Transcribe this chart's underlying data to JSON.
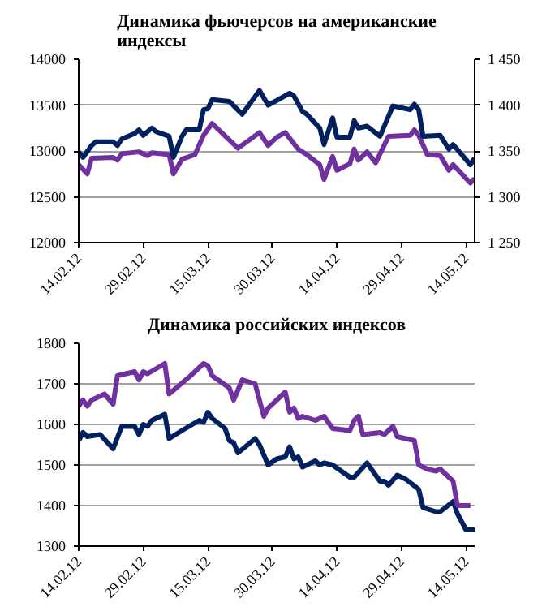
{
  "chart_data": [
    {
      "type": "line",
      "title": "Динамика фьючерсов на американские индексы",
      "grid": "y",
      "line_style": "solid",
      "marker": "none",
      "xlim": [
        "2012-02-14",
        "2012-05-16"
      ],
      "xticks": [
        {
          "value": "2012-02-14",
          "label": "14.02.12"
        },
        {
          "value": "2012-02-29",
          "label": "29.02.12"
        },
        {
          "value": "2012-03-15",
          "label": "15.03.12"
        },
        {
          "value": "2012-03-30",
          "label": "30.03.12"
        },
        {
          "value": "2012-04-14",
          "label": "14.04.12"
        },
        {
          "value": "2012-04-29",
          "label": "29.04.12"
        },
        {
          "value": "2012-05-14",
          "label": "14.05.12"
        }
      ],
      "ylim": [
        12000,
        14000
      ],
      "yticks": [
        12000,
        12500,
        13000,
        13500,
        14000
      ],
      "y2lim": [
        1250,
        1450
      ],
      "y2ticks": [
        {
          "value": 1250,
          "label": "1 250"
        },
        {
          "value": 1300,
          "label": "1 300"
        },
        {
          "value": 1350,
          "label": "1 350"
        },
        {
          "value": 1400,
          "label": "1 400"
        },
        {
          "value": 1450,
          "label": "1 450"
        }
      ],
      "series": [
        {
          "color": "#7030a0",
          "x": [
            "2012-02-14",
            "2012-02-16",
            "2012-02-17",
            "2012-02-22",
            "2012-02-23",
            "2012-02-24",
            "2012-02-28",
            "2012-03-01",
            "2012-03-02",
            "2012-03-06",
            "2012-03-07",
            "2012-03-09",
            "2012-03-12",
            "2012-03-14",
            "2012-03-16",
            "2012-03-22",
            "2012-03-27",
            "2012-03-29",
            "2012-03-31",
            "2012-04-02",
            "2012-04-05",
            "2012-04-07",
            "2012-04-10",
            "2012-04-11",
            "2012-04-13",
            "2012-04-14",
            "2012-04-17",
            "2012-04-18",
            "2012-04-19",
            "2012-04-21",
            "2012-04-23",
            "2012-04-26",
            "2012-05-01",
            "2012-05-02",
            "2012-05-03",
            "2012-05-05",
            "2012-05-08",
            "2012-05-10",
            "2012-05-11",
            "2012-05-15",
            "2012-05-16"
          ],
          "values": [
            12850,
            12750,
            12920,
            12930,
            12900,
            12970,
            12990,
            12950,
            12980,
            12960,
            12750,
            12910,
            12960,
            13170,
            13300,
            13030,
            13200,
            13060,
            13150,
            13200,
            13020,
            12960,
            12850,
            12690,
            12940,
            12790,
            12860,
            13020,
            12900,
            12990,
            12870,
            13160,
            13170,
            13230,
            13170,
            12960,
            12950,
            12790,
            12850,
            12650,
            12700
          ]
        },
        {
          "color": "#002060",
          "axis": "y2",
          "x": [
            "2012-02-14",
            "2012-02-15",
            "2012-02-17",
            "2012-02-18",
            "2012-02-22",
            "2012-02-23",
            "2012-02-24",
            "2012-02-27",
            "2012-02-28",
            "2012-02-29",
            "2012-03-02",
            "2012-03-03",
            "2012-03-06",
            "2012-03-07",
            "2012-03-09",
            "2012-03-10",
            "2012-03-13",
            "2012-03-14",
            "2012-03-15",
            "2012-03-16",
            "2012-03-20",
            "2012-03-23",
            "2012-03-27",
            "2012-03-29",
            "2012-03-31",
            "2012-04-03",
            "2012-04-04",
            "2012-04-06",
            "2012-04-07",
            "2012-04-10",
            "2012-04-11",
            "2012-04-13",
            "2012-04-14",
            "2012-04-17",
            "2012-04-18",
            "2012-04-19",
            "2012-04-21",
            "2012-04-24",
            "2012-04-27",
            "2012-05-01",
            "2012-05-02",
            "2012-05-03",
            "2012-05-04",
            "2012-05-08",
            "2012-05-10",
            "2012-05-11",
            "2012-05-15",
            "2012-05-16"
          ],
          "values": [
            1349,
            1343,
            1356,
            1360,
            1360,
            1356,
            1363,
            1369,
            1373,
            1367,
            1375,
            1371,
            1366,
            1343,
            1366,
            1373,
            1373,
            1395,
            1396,
            1406,
            1404,
            1390,
            1416,
            1400,
            1405,
            1413,
            1410,
            1393,
            1390,
            1375,
            1357,
            1386,
            1365,
            1365,
            1383,
            1375,
            1377,
            1366,
            1399,
            1395,
            1401,
            1395,
            1366,
            1367,
            1352,
            1357,
            1335,
            1342
          ]
        }
      ]
    },
    {
      "type": "line",
      "title": "Динамика российских индексов",
      "grid": "y",
      "line_style": "solid",
      "marker": "none",
      "xlim": [
        "2012-02-14",
        "2012-05-16"
      ],
      "xticks": [
        {
          "value": "2012-02-14",
          "label": "14.02.12"
        },
        {
          "value": "2012-02-29",
          "label": "29.02.12"
        },
        {
          "value": "2012-03-15",
          "label": "15.03.12"
        },
        {
          "value": "2012-03-30",
          "label": "30.03.12"
        },
        {
          "value": "2012-04-14",
          "label": "14.04.12"
        },
        {
          "value": "2012-04-29",
          "label": "29.04.12"
        },
        {
          "value": "2012-05-14",
          "label": "14.05.12"
        }
      ],
      "ylim": [
        1300,
        1800
      ],
      "yticks": [
        1300,
        1400,
        1500,
        1600,
        1700,
        1800
      ],
      "series": [
        {
          "color": "#002060",
          "x": [
            "2012-02-14",
            "2012-02-15",
            "2012-02-16",
            "2012-02-19",
            "2012-02-22",
            "2012-02-24",
            "2012-02-27",
            "2012-02-28",
            "2012-02-29",
            "2012-03-01",
            "2012-03-02",
            "2012-03-05",
            "2012-03-06",
            "2012-03-09",
            "2012-03-13",
            "2012-03-14",
            "2012-03-15",
            "2012-03-16",
            "2012-03-19",
            "2012-03-20",
            "2012-03-21",
            "2012-03-22",
            "2012-03-26",
            "2012-03-27",
            "2012-03-29",
            "2012-03-31",
            "2012-04-02",
            "2012-04-03",
            "2012-04-04",
            "2012-04-05",
            "2012-04-06",
            "2012-04-09",
            "2012-04-10",
            "2012-04-11",
            "2012-04-13",
            "2012-04-17",
            "2012-04-18",
            "2012-04-21",
            "2012-04-24",
            "2012-04-25",
            "2012-04-26",
            "2012-04-28",
            "2012-04-30",
            "2012-05-03",
            "2012-05-04",
            "2012-05-07",
            "2012-05-08",
            "2012-05-11",
            "2012-05-12",
            "2012-05-14",
            "2012-05-16"
          ],
          "values": [
            1560,
            1580,
            1570,
            1575,
            1540,
            1595,
            1595,
            1575,
            1600,
            1595,
            1610,
            1625,
            1565,
            1585,
            1610,
            1605,
            1630,
            1615,
            1590,
            1560,
            1555,
            1530,
            1565,
            1550,
            1500,
            1515,
            1520,
            1545,
            1515,
            1520,
            1495,
            1510,
            1500,
            1505,
            1500,
            1470,
            1470,
            1505,
            1460,
            1460,
            1450,
            1475,
            1465,
            1440,
            1395,
            1385,
            1385,
            1410,
            1380,
            1340,
            1340
          ]
        },
        {
          "color": "#7030a0",
          "x": [
            "2012-02-14",
            "2012-02-15",
            "2012-02-16",
            "2012-02-17",
            "2012-02-20",
            "2012-02-22",
            "2012-02-23",
            "2012-02-27",
            "2012-02-28",
            "2012-02-29",
            "2012-03-01",
            "2012-03-05",
            "2012-03-06",
            "2012-03-11",
            "2012-03-14",
            "2012-03-15",
            "2012-03-16",
            "2012-03-20",
            "2012-03-21",
            "2012-03-23",
            "2012-03-26",
            "2012-03-28",
            "2012-03-29",
            "2012-04-02",
            "2012-04-03",
            "2012-04-04",
            "2012-04-05",
            "2012-04-06",
            "2012-04-09",
            "2012-04-11",
            "2012-04-13",
            "2012-04-17",
            "2012-04-18",
            "2012-04-19",
            "2012-04-20",
            "2012-04-24",
            "2012-04-25",
            "2012-04-27",
            "2012-04-28",
            "2012-05-02",
            "2012-05-03",
            "2012-05-05",
            "2012-05-07",
            "2012-05-08",
            "2012-05-11",
            "2012-05-12",
            "2012-05-15"
          ],
          "values": [
            1645,
            1660,
            1645,
            1660,
            1675,
            1650,
            1720,
            1730,
            1710,
            1730,
            1725,
            1750,
            1675,
            1720,
            1750,
            1745,
            1720,
            1690,
            1660,
            1710,
            1700,
            1620,
            1640,
            1680,
            1630,
            1640,
            1615,
            1620,
            1610,
            1620,
            1590,
            1585,
            1610,
            1620,
            1575,
            1580,
            1575,
            1595,
            1570,
            1560,
            1500,
            1490,
            1485,
            1490,
            1460,
            1400,
            1400
          ]
        }
      ]
    }
  ]
}
